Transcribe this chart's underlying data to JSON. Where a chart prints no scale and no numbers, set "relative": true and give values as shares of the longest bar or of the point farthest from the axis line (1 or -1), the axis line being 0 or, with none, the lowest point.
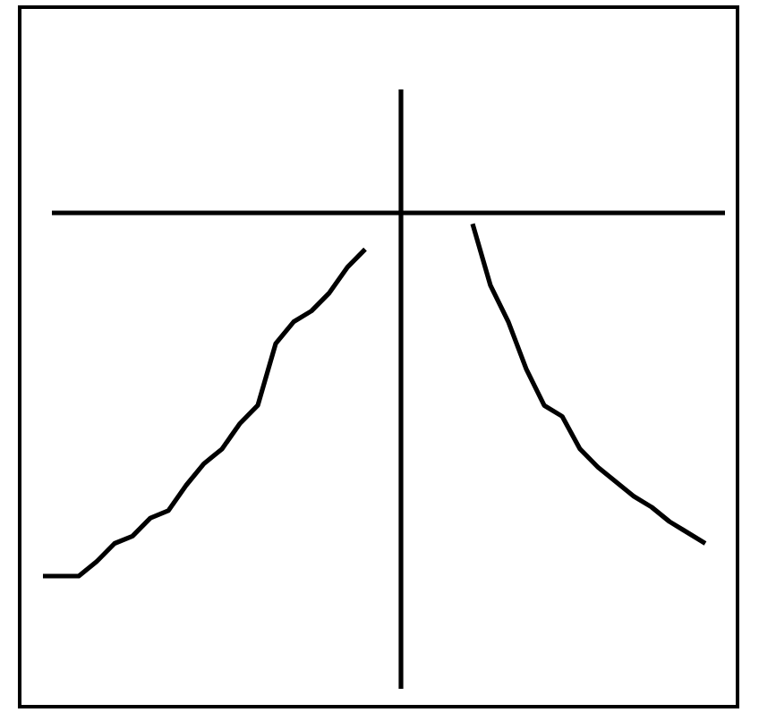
{
  "chart_data": {
    "type": "line",
    "relative": true,
    "categories": [
      null,
      null,
      null,
      null,
      null,
      null,
      null,
      null,
      null,
      null,
      null,
      null,
      null,
      null,
      null,
      null,
      null,
      null,
      null,
      null,
      null,
      null,
      null,
      null,
      null,
      null,
      null,
      null,
      null,
      null,
      null,
      null,
      null,
      null,
      null,
      null,
      null,
      null,
      null
    ],
    "series": [
      {
        "color": "#000000",
        "values": [
          -1.0,
          -1.0,
          -1.0,
          -0.96,
          -0.91,
          -0.89,
          -0.84,
          -0.82,
          -0.75,
          -0.69,
          -0.65,
          -0.58,
          -0.53,
          -0.36,
          -0.3,
          -0.27,
          -0.22,
          -0.15,
          -0.1,
          null,
          null,
          null,
          null,
          null,
          null,
          null,
          null,
          null,
          null,
          null,
          null,
          null,
          null,
          null,
          null,
          null,
          null,
          null,
          null
        ]
      },
      {
        "color": "#000000",
        "values": [
          null,
          null,
          null,
          null,
          null,
          null,
          null,
          null,
          null,
          null,
          null,
          null,
          null,
          null,
          null,
          null,
          null,
          null,
          null,
          null,
          null,
          null,
          null,
          null,
          -0.03,
          -0.2,
          -0.3,
          -0.43,
          -0.53,
          -0.56,
          -0.65,
          -0.7,
          -0.74,
          -0.78,
          -0.81,
          -0.85,
          -0.88,
          -0.91,
          null
        ]
      }
    ]
  }
}
